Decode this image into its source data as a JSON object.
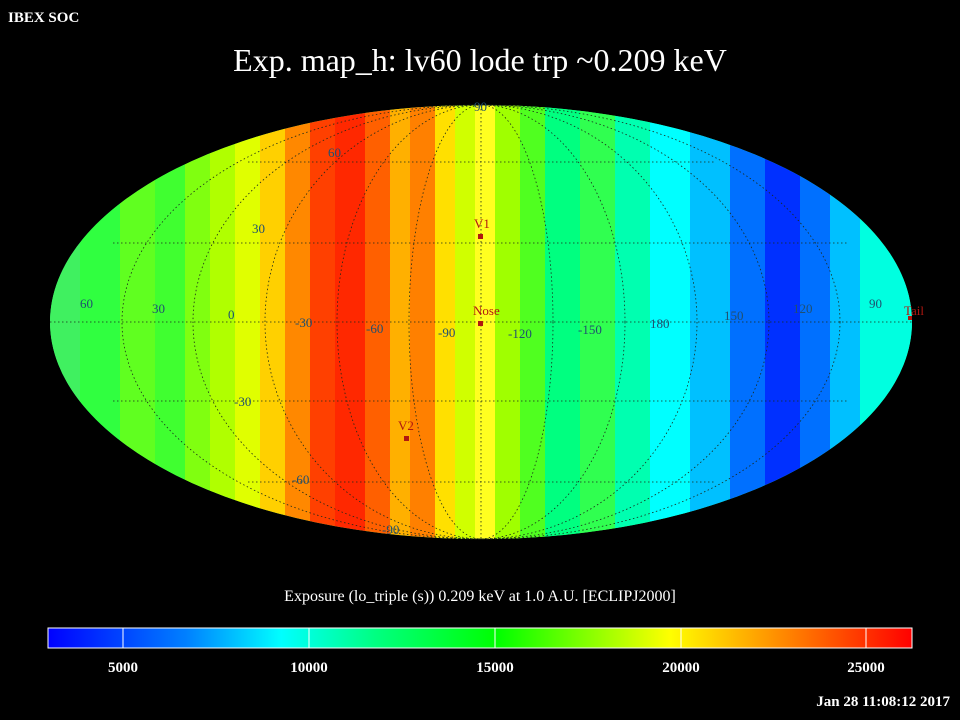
{
  "header": {
    "org_label": "IBEX SOC",
    "title": "Exp.   map_h: lv60 lode trp ~0.209 keV"
  },
  "map": {
    "projection": "Mollweide (ecliptic J2000)",
    "meridian_labels": [
      "60",
      "30",
      "0",
      "-30",
      "-60",
      "-90",
      "-120",
      "-150",
      "180",
      "150",
      "120",
      "90"
    ],
    "latitude_labels": [
      "90",
      "60",
      "30",
      "-30",
      "-60",
      "-90"
    ],
    "markers": [
      {
        "name": "V1",
        "color": "#c0201a"
      },
      {
        "name": "Nose",
        "color": "#c0201a"
      },
      {
        "name": "V2",
        "color": "#c0201a"
      },
      {
        "name": "Tail",
        "color": "#c0201a"
      }
    ]
  },
  "colorbar": {
    "label": "Exposure (lo_triple (s))  0.209 keV at 1.0 A.U. [ECLIPJ2000]",
    "ticks": [
      "5000",
      "10000",
      "15000",
      "20000",
      "25000"
    ],
    "colors": [
      "#0000ff",
      "#0080ff",
      "#00ffff",
      "#00ff80",
      "#00ff00",
      "#80ff00",
      "#ffff00",
      "#ff8000",
      "#ff0000"
    ]
  },
  "footer": {
    "timestamp": "Jan 28 11:08:12 2017"
  }
}
